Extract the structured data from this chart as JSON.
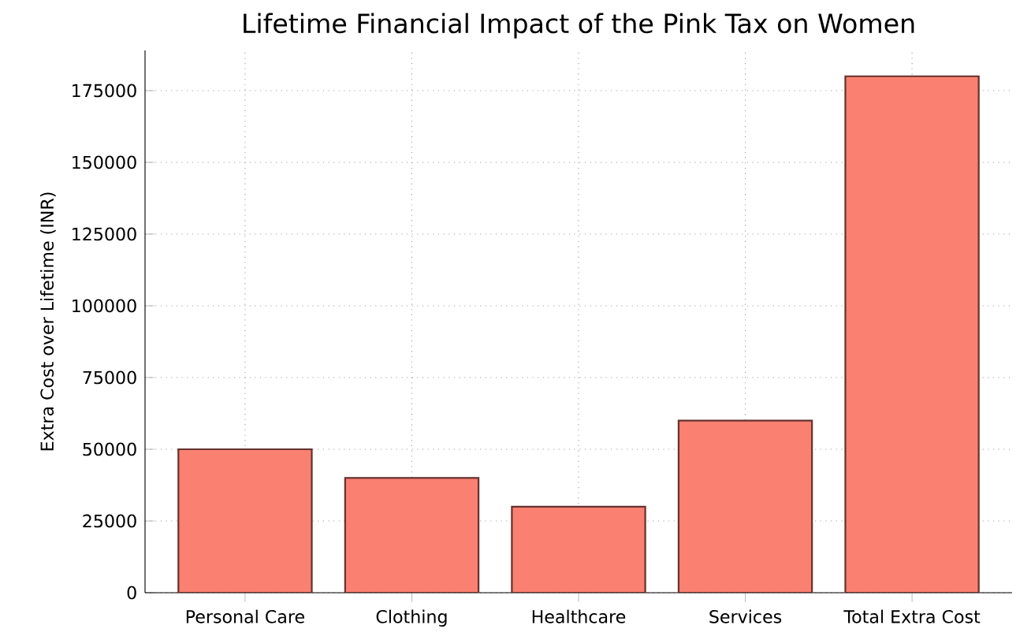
{
  "chart_data": {
    "type": "bar",
    "title": "Lifetime Financial Impact of the Pink Tax on Women",
    "ylabel": "Extra Cost over Lifetime (INR)",
    "categories": [
      "Personal Care",
      "Clothing",
      "Healthcare",
      "Services",
      "Total Extra Cost"
    ],
    "values": [
      50000,
      40000,
      30000,
      60000,
      180000
    ],
    "color": "#fa8072",
    "ylim": [
      0,
      189000
    ],
    "yticks": [
      0,
      25000,
      50000,
      75000,
      100000,
      125000,
      150000,
      175000
    ],
    "grid": true
  }
}
